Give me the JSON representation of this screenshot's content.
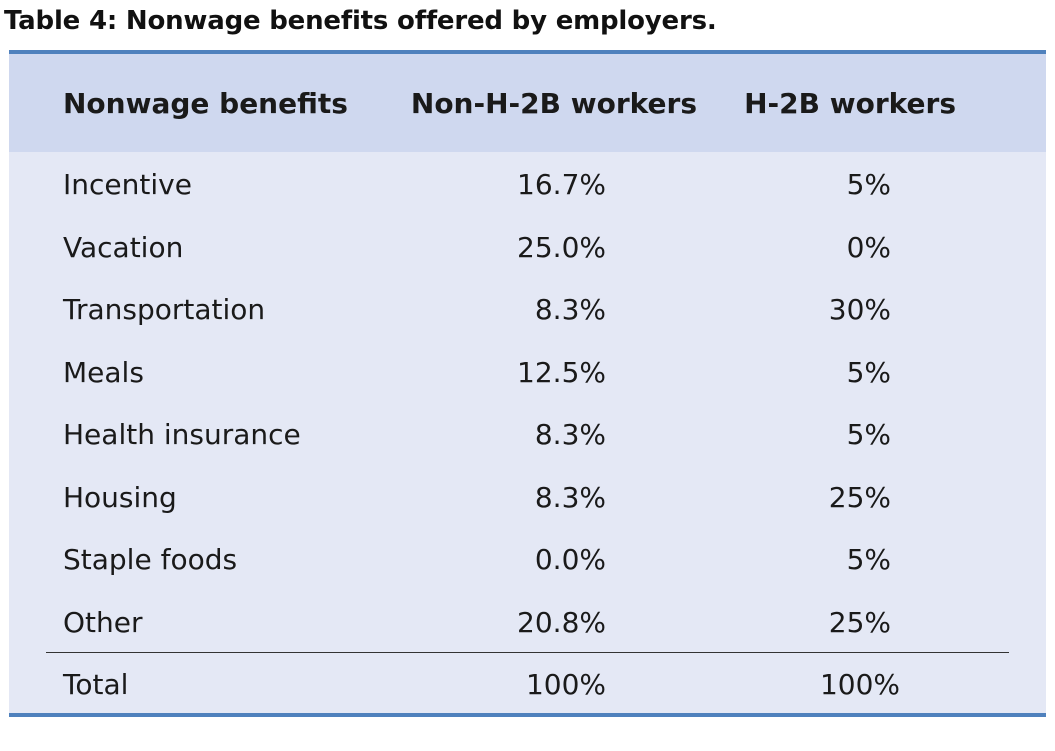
{
  "caption": "Table 4: Nonwage benefits offered by employers.",
  "table": {
    "headers": [
      "Nonwage benefits",
      "Non-H-2B workers",
      "H-2B workers"
    ],
    "rows": [
      [
        "Incentive",
        "16.7%",
        "5%"
      ],
      [
        "Vacation",
        "25.0%",
        "0%"
      ],
      [
        "Transportation",
        "8.3%",
        "30%"
      ],
      [
        "Meals",
        "12.5%",
        "5%"
      ],
      [
        "Health insurance",
        "8.3%",
        "5%"
      ],
      [
        "Housing",
        "8.3%",
        "25%"
      ],
      [
        "Staple foods",
        "0.0%",
        "5%"
      ],
      [
        "Other",
        "20.8%",
        "25%"
      ]
    ],
    "total": [
      "Total",
      "100%",
      "100%"
    ]
  },
  "colors": {
    "header_band": "#cfd8ef",
    "body": "#e4e8f5",
    "border": "#4f81bd"
  }
}
